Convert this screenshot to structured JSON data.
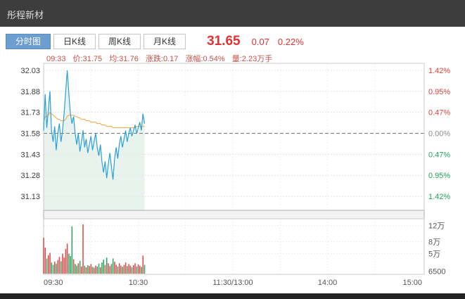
{
  "header": {
    "title": "彤程新材"
  },
  "tabs": [
    {
      "label": "分时图",
      "active": true
    },
    {
      "label": "日K线",
      "active": false
    },
    {
      "label": "周K线",
      "active": false
    },
    {
      "label": "月K线",
      "active": false
    }
  ],
  "quote": {
    "price": "31.65",
    "change": "0.07",
    "change_pct": "0.22%"
  },
  "info_bar": {
    "time": "09:33",
    "price": "价:31.75",
    "avg": "均:31.76",
    "change": "涨跌:0.17",
    "change_pct": "涨幅:0.54%",
    "volume": "量:2.23万手"
  },
  "chart_data": {
    "type": "line",
    "title": "分时图 intraday price/volume chart",
    "left_axis": [
      "32.03",
      "31.88",
      "31.73",
      "31.58",
      "31.43",
      "31.28",
      "31.13"
    ],
    "right_axis": [
      {
        "label": "1.42%",
        "color": "#e04040"
      },
      {
        "label": "0.95%",
        "color": "#e04040"
      },
      {
        "label": "0.47%",
        "color": "#e04040"
      },
      {
        "label": "0.00%",
        "color": "#8a8a8a"
      },
      {
        "label": "0.47%",
        "color": "#1fa35a"
      },
      {
        "label": "0.95%",
        "color": "#1fa35a"
      },
      {
        "label": "1.42%",
        "color": "#1fa35a"
      }
    ],
    "prev_close_label": "31.58",
    "prev_close": 31.58,
    "price_axis_max": 32.08,
    "price_axis_min": 31.03,
    "total_minutes": 240,
    "x_axis": [
      {
        "label": "09:30",
        "minute": 0,
        "anchor": "start"
      },
      {
        "label": "10:30",
        "minute": 60,
        "anchor": "middle"
      },
      {
        "label": "11:30/13:00",
        "minute": 120,
        "anchor": "middle"
      },
      {
        "label": "14:00",
        "minute": 180,
        "anchor": "middle"
      },
      {
        "label": "15:00",
        "minute": 240,
        "anchor": "end"
      }
    ],
    "volume_axis": [
      {
        "label": "12万",
        "value": 12,
        "grid": true
      },
      {
        "label": "8万",
        "value": 8,
        "grid": true
      },
      {
        "label": "5万",
        "value": 5,
        "grid": true
      },
      {
        "label": "6500",
        "value": 0.65,
        "grid": false
      }
    ],
    "volume_unit": "万手",
    "volume_scale_max": 13,
    "price_series": [
      31.6,
      31.86,
      31.62,
      31.75,
      31.88,
      31.6,
      31.52,
      31.63,
      31.46,
      31.58,
      31.65,
      31.52,
      31.6,
      31.72,
      31.88,
      32.03,
      31.86,
      31.72,
      31.65,
      31.7,
      31.58,
      31.5,
      31.58,
      31.45,
      31.52,
      31.6,
      31.48,
      31.54,
      31.44,
      31.5,
      31.56,
      31.46,
      31.52,
      31.58,
      31.48,
      31.42,
      31.5,
      31.38,
      31.3,
      31.38,
      31.26,
      31.36,
      31.44,
      31.34,
      31.25,
      31.4,
      31.48,
      31.4,
      31.5,
      31.56,
      31.48,
      31.54,
      31.6,
      31.52,
      31.58,
      31.62,
      31.56,
      31.6,
      31.64,
      31.58,
      31.62,
      31.66,
      31.6,
      31.72,
      31.65
    ],
    "avg_series": [
      31.66,
      31.7,
      31.7,
      31.71,
      31.73,
      31.72,
      31.71,
      31.7,
      31.69,
      31.68,
      31.68,
      31.67,
      31.67,
      31.67,
      31.68,
      31.7,
      31.71,
      31.71,
      31.71,
      31.71,
      31.7,
      31.7,
      31.69,
      31.69,
      31.68,
      31.68,
      31.68,
      31.67,
      31.67,
      31.67,
      31.66,
      31.66,
      31.66,
      31.66,
      31.65,
      31.65,
      31.65,
      31.64,
      31.64,
      31.64,
      31.63,
      31.63,
      31.63,
      31.63,
      31.62,
      31.62,
      31.62,
      31.62,
      31.62,
      31.62,
      31.62,
      31.62,
      31.62,
      31.62,
      31.62,
      31.62,
      31.62,
      31.62,
      31.62,
      31.63,
      31.63,
      31.63,
      31.63,
      31.63,
      31.63
    ],
    "volume_series": [
      9.0,
      6.5,
      3.8,
      4.6,
      5.2,
      2.8,
      2.2,
      3.0,
      2.5,
      3.4,
      4.2,
      3.1,
      5.0,
      4.0,
      6.2,
      7.5,
      5.0,
      4.4,
      11.8,
      3.6,
      2.4,
      2.0,
      2.6,
      3.2,
      1.8,
      12.3,
      2.0,
      1.6,
      2.1,
      1.9,
      2.4,
      1.7,
      1.5,
      2.0,
      1.8,
      2.5,
      1.6,
      2.8,
      3.5,
      2.2,
      4.0,
      2.6,
      1.9,
      2.4,
      3.8,
      3.0,
      2.2,
      1.8,
      2.6,
      2.0,
      1.7,
      2.2,
      2.8,
      1.9,
      2.4,
      2.0,
      1.6,
      2.1,
      2.6,
      1.8,
      2.3,
      2.0,
      1.7,
      4.5,
      2.2
    ],
    "colors": {
      "up": "#e04545",
      "down": "#28a35c",
      "line": "#2b9fd8",
      "avg": "#f2a33c",
      "fill": "#e9f3ee",
      "accent": "#6d9ed2",
      "quote_red": "#e03333"
    }
  }
}
